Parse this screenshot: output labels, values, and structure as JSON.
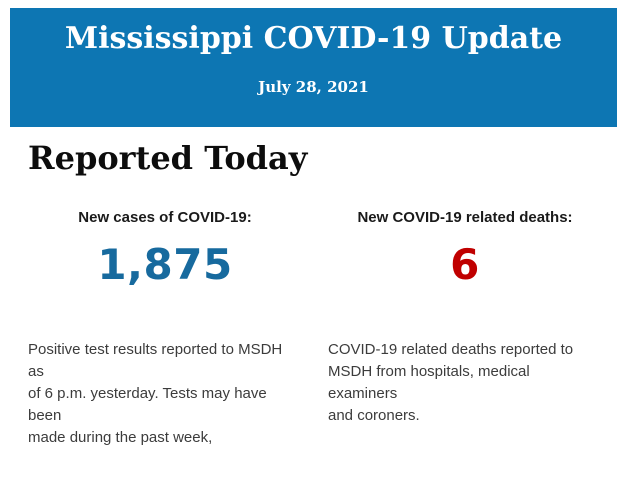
{
  "banner": {
    "title": "Mississippi COVID-19 Update",
    "date": "July 28, 2021",
    "background_color": "#0d76b3",
    "text_color": "#ffffff"
  },
  "section": {
    "heading": "Reported Today"
  },
  "stats": [
    {
      "label": "New cases of COVID-19:",
      "value": "1,875",
      "value_color": "#176a9e",
      "description": "Positive test results reported to MSDH as\nof 6 p.m. yesterday. Tests may have been\nmade during the past week,"
    },
    {
      "label": "New COVID-19 related deaths:",
      "value": "6",
      "value_color": "#c00000",
      "description": "COVID-19 related deaths reported to\nMSDH from hospitals, medical examiners\nand coroners."
    }
  ]
}
